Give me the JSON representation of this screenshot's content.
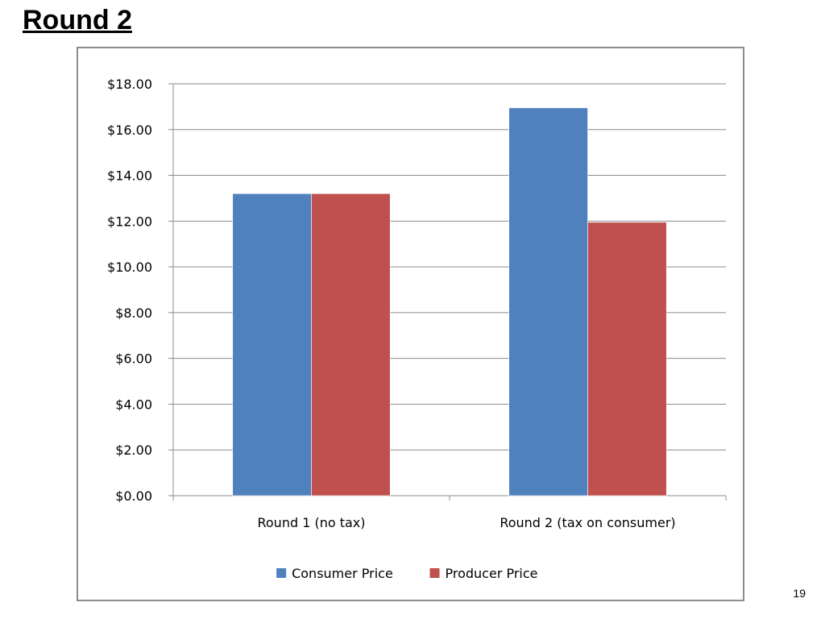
{
  "slide": {
    "title": "Round 2",
    "page_number": "19"
  },
  "chart_data": {
    "type": "bar",
    "categories": [
      "Round 1 (no tax)",
      "Round 2 (tax on consumer)"
    ],
    "series": [
      {
        "name": "Consumer Price",
        "values": [
          13.2,
          16.95
        ],
        "color": "#4f81bd"
      },
      {
        "name": "Producer Price",
        "values": [
          13.2,
          11.95
        ],
        "color": "#c0504d"
      }
    ],
    "ylim": [
      0,
      18
    ],
    "yticks": [
      0,
      2,
      4,
      6,
      8,
      10,
      12,
      14,
      16,
      18
    ],
    "ytick_labels": [
      "$0.00",
      "$2.00",
      "$4.00",
      "$6.00",
      "$8.00",
      "$10.00",
      "$12.00",
      "$14.00",
      "$16.00",
      "$18.00"
    ],
    "grid": true,
    "legend": "bottom"
  }
}
